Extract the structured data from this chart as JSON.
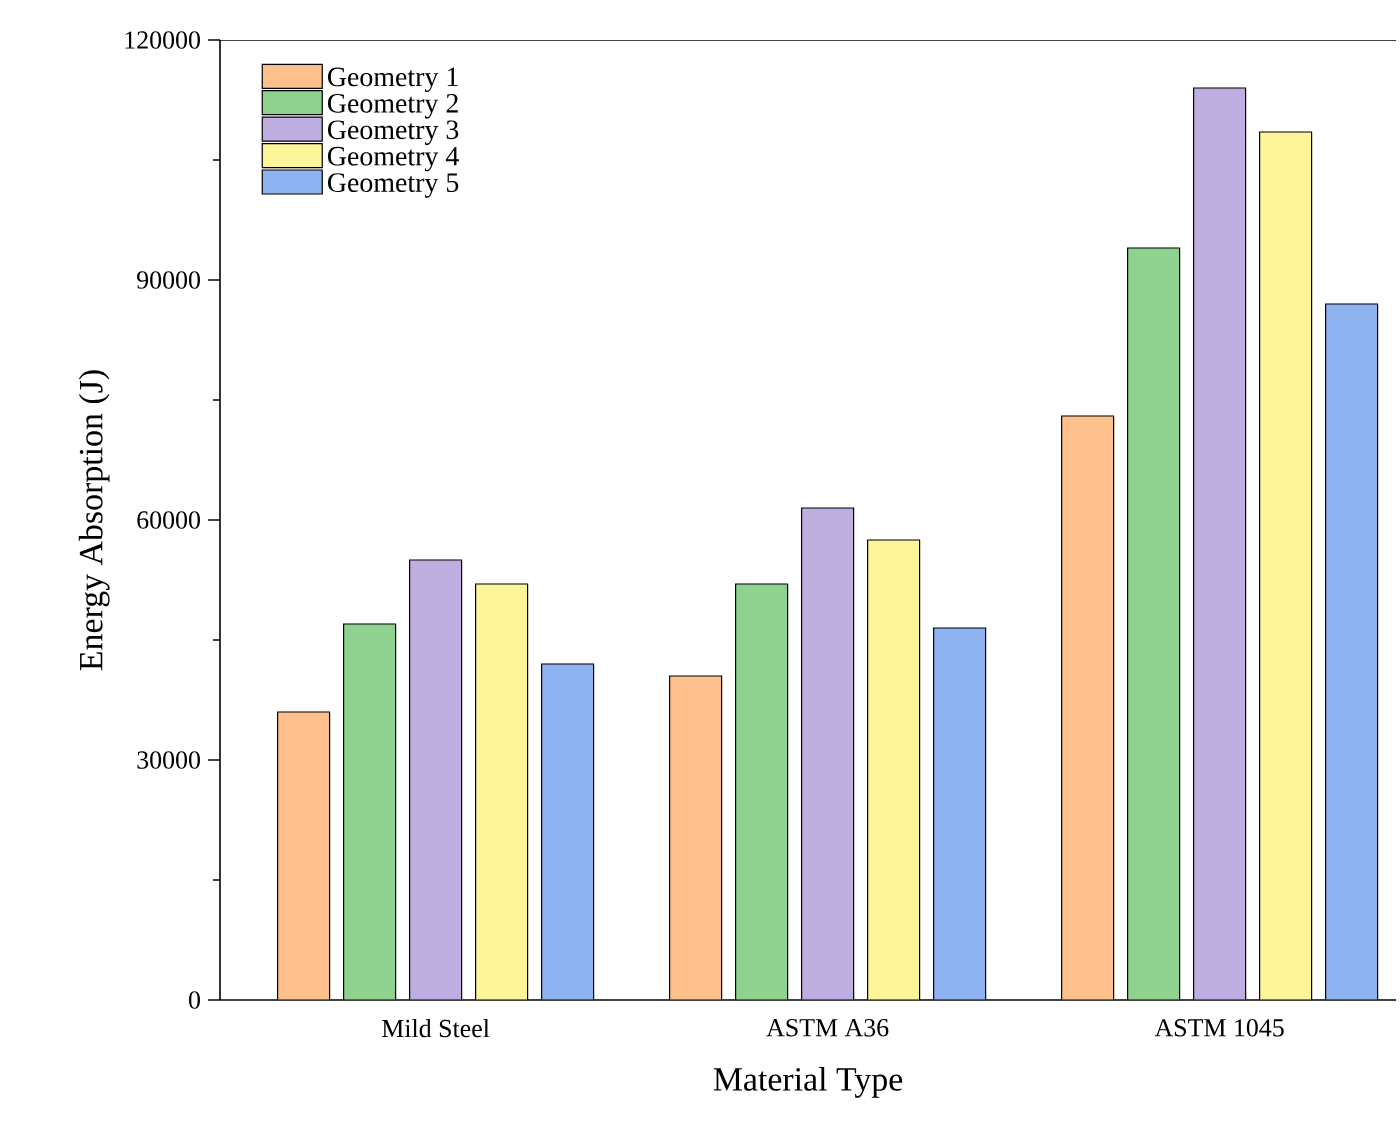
{
  "chart_data": {
    "type": "bar",
    "xlabel": "Material Type",
    "ylabel": "Energy Absorption (J)",
    "categories": [
      "Mild Steel",
      "ASTM A36",
      "ASTM 1045"
    ],
    "series": [
      {
        "name": "Geometry 1",
        "color": "#fdc08c",
        "values": [
          36000,
          40500,
          73000
        ]
      },
      {
        "name": "Geometry 2",
        "color": "#8fd18e",
        "values": [
          47000,
          52000,
          94000
        ]
      },
      {
        "name": "Geometry 3",
        "color": "#bfaee0",
        "values": [
          55000,
          61500,
          114000
        ]
      },
      {
        "name": "Geometry 4",
        "color": "#fdf59a",
        "values": [
          52000,
          57500,
          108500
        ]
      },
      {
        "name": "Geometry 5",
        "color": "#8fb3f0",
        "values": [
          42000,
          46500,
          87000
        ]
      }
    ],
    "ylim": [
      0,
      120000
    ],
    "yticks": [
      0,
      30000,
      60000,
      90000,
      120000
    ],
    "legend": "top left"
  }
}
